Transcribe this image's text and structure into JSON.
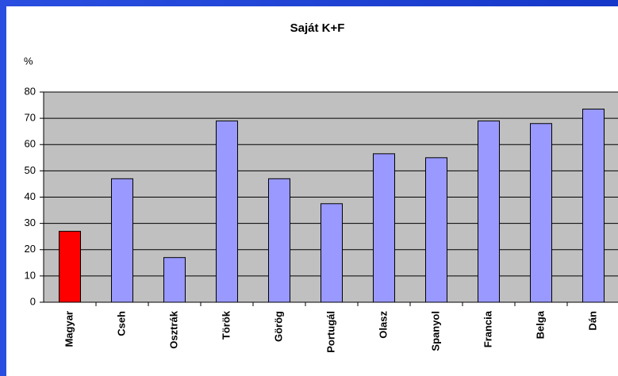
{
  "chart_data": {
    "type": "bar",
    "title": "Saját K+F",
    "y_label": "%",
    "categories": [
      "Magyar",
      "Cseh",
      "Osztrák",
      "Török",
      "Görög",
      "Portugál",
      "Olasz",
      "Spanyol",
      "Francia",
      "Belga",
      "Dán"
    ],
    "values": [
      27,
      47,
      17,
      69,
      47,
      37.5,
      56.5,
      55,
      69,
      68,
      73.5
    ],
    "colors": [
      "#ff0000",
      "#9999ff",
      "#9999ff",
      "#9999ff",
      "#9999ff",
      "#9999ff",
      "#9999ff",
      "#9999ff",
      "#9999ff",
      "#9999ff",
      "#9999ff"
    ],
    "ylim": [
      0,
      80
    ],
    "yticks": [
      0,
      10,
      20,
      30,
      40,
      50,
      60,
      70,
      80
    ],
    "grid": true
  }
}
